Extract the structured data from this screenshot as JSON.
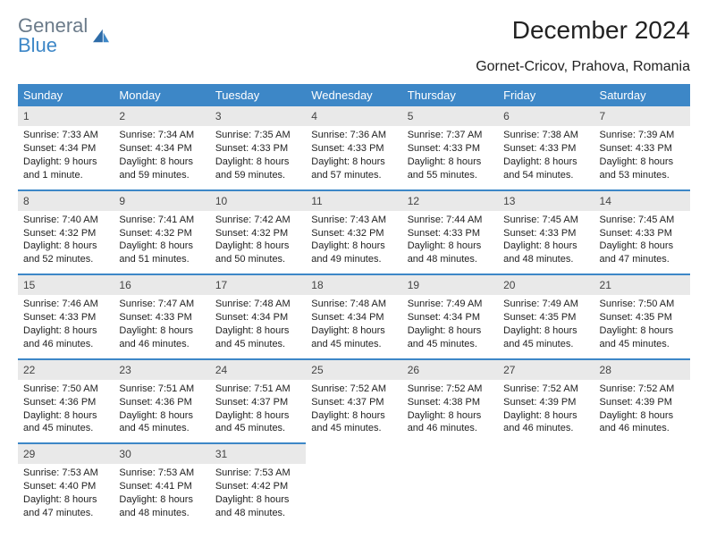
{
  "brand": {
    "word1": "General",
    "word2": "Blue"
  },
  "title": "December 2024",
  "location": "Gornet-Cricov, Prahova, Romania",
  "colors": {
    "header_bg": "#3d87c7",
    "header_fg": "#ffffff",
    "daynum_bg": "#e9e9e9",
    "row_border": "#3d87c7",
    "text": "#222222",
    "logo_gray": "#6b7b8a",
    "logo_blue": "#3d87c7"
  },
  "weekdays": [
    "Sunday",
    "Monday",
    "Tuesday",
    "Wednesday",
    "Thursday",
    "Friday",
    "Saturday"
  ],
  "weeks": [
    [
      {
        "n": "1",
        "sr": "7:33 AM",
        "ss": "4:34 PM",
        "dl": "9 hours and 1 minute."
      },
      {
        "n": "2",
        "sr": "7:34 AM",
        "ss": "4:34 PM",
        "dl": "8 hours and 59 minutes."
      },
      {
        "n": "3",
        "sr": "7:35 AM",
        "ss": "4:33 PM",
        "dl": "8 hours and 59 minutes."
      },
      {
        "n": "4",
        "sr": "7:36 AM",
        "ss": "4:33 PM",
        "dl": "8 hours and 57 minutes."
      },
      {
        "n": "5",
        "sr": "7:37 AM",
        "ss": "4:33 PM",
        "dl": "8 hours and 55 minutes."
      },
      {
        "n": "6",
        "sr": "7:38 AM",
        "ss": "4:33 PM",
        "dl": "8 hours and 54 minutes."
      },
      {
        "n": "7",
        "sr": "7:39 AM",
        "ss": "4:33 PM",
        "dl": "8 hours and 53 minutes."
      }
    ],
    [
      {
        "n": "8",
        "sr": "7:40 AM",
        "ss": "4:32 PM",
        "dl": "8 hours and 52 minutes."
      },
      {
        "n": "9",
        "sr": "7:41 AM",
        "ss": "4:32 PM",
        "dl": "8 hours and 51 minutes."
      },
      {
        "n": "10",
        "sr": "7:42 AM",
        "ss": "4:32 PM",
        "dl": "8 hours and 50 minutes."
      },
      {
        "n": "11",
        "sr": "7:43 AM",
        "ss": "4:32 PM",
        "dl": "8 hours and 49 minutes."
      },
      {
        "n": "12",
        "sr": "7:44 AM",
        "ss": "4:33 PM",
        "dl": "8 hours and 48 minutes."
      },
      {
        "n": "13",
        "sr": "7:45 AM",
        "ss": "4:33 PM",
        "dl": "8 hours and 48 minutes."
      },
      {
        "n": "14",
        "sr": "7:45 AM",
        "ss": "4:33 PM",
        "dl": "8 hours and 47 minutes."
      }
    ],
    [
      {
        "n": "15",
        "sr": "7:46 AM",
        "ss": "4:33 PM",
        "dl": "8 hours and 46 minutes."
      },
      {
        "n": "16",
        "sr": "7:47 AM",
        "ss": "4:33 PM",
        "dl": "8 hours and 46 minutes."
      },
      {
        "n": "17",
        "sr": "7:48 AM",
        "ss": "4:34 PM",
        "dl": "8 hours and 45 minutes."
      },
      {
        "n": "18",
        "sr": "7:48 AM",
        "ss": "4:34 PM",
        "dl": "8 hours and 45 minutes."
      },
      {
        "n": "19",
        "sr": "7:49 AM",
        "ss": "4:34 PM",
        "dl": "8 hours and 45 minutes."
      },
      {
        "n": "20",
        "sr": "7:49 AM",
        "ss": "4:35 PM",
        "dl": "8 hours and 45 minutes."
      },
      {
        "n": "21",
        "sr": "7:50 AM",
        "ss": "4:35 PM",
        "dl": "8 hours and 45 minutes."
      }
    ],
    [
      {
        "n": "22",
        "sr": "7:50 AM",
        "ss": "4:36 PM",
        "dl": "8 hours and 45 minutes."
      },
      {
        "n": "23",
        "sr": "7:51 AM",
        "ss": "4:36 PM",
        "dl": "8 hours and 45 minutes."
      },
      {
        "n": "24",
        "sr": "7:51 AM",
        "ss": "4:37 PM",
        "dl": "8 hours and 45 minutes."
      },
      {
        "n": "25",
        "sr": "7:52 AM",
        "ss": "4:37 PM",
        "dl": "8 hours and 45 minutes."
      },
      {
        "n": "26",
        "sr": "7:52 AM",
        "ss": "4:38 PM",
        "dl": "8 hours and 46 minutes."
      },
      {
        "n": "27",
        "sr": "7:52 AM",
        "ss": "4:39 PM",
        "dl": "8 hours and 46 minutes."
      },
      {
        "n": "28",
        "sr": "7:52 AM",
        "ss": "4:39 PM",
        "dl": "8 hours and 46 minutes."
      }
    ],
    [
      {
        "n": "29",
        "sr": "7:53 AM",
        "ss": "4:40 PM",
        "dl": "8 hours and 47 minutes."
      },
      {
        "n": "30",
        "sr": "7:53 AM",
        "ss": "4:41 PM",
        "dl": "8 hours and 48 minutes."
      },
      {
        "n": "31",
        "sr": "7:53 AM",
        "ss": "4:42 PM",
        "dl": "8 hours and 48 minutes."
      },
      null,
      null,
      null,
      null
    ]
  ],
  "labels": {
    "sunrise": "Sunrise: ",
    "sunset": "Sunset: ",
    "daylight": "Daylight: "
  }
}
